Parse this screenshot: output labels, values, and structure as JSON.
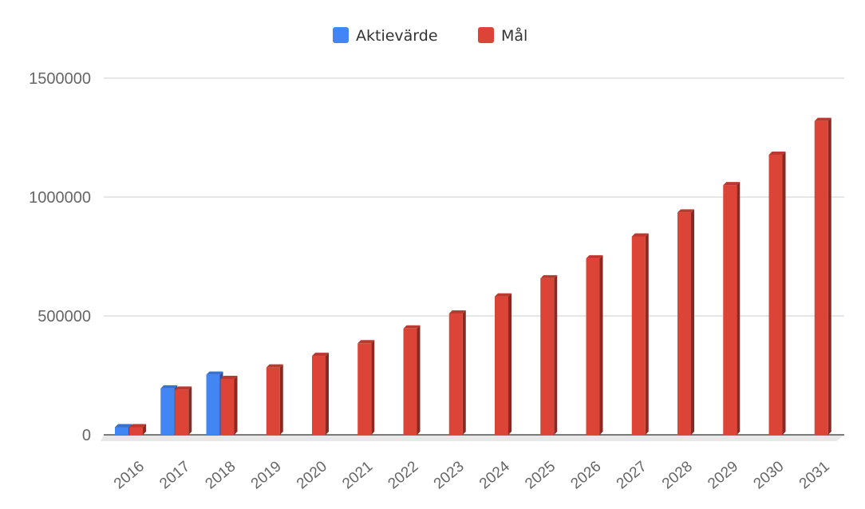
{
  "chart_data": {
    "type": "bar",
    "style": "3d",
    "categories": [
      "2016",
      "2017",
      "2018",
      "2019",
      "2020",
      "2021",
      "2022",
      "2023",
      "2024",
      "2025",
      "2026",
      "2027",
      "2028",
      "2029",
      "2030",
      "2031"
    ],
    "series": [
      {
        "name": "Aktievärde",
        "color": "#4285f4",
        "values": [
          32000,
          195000,
          253000,
          null,
          null,
          null,
          null,
          null,
          null,
          null,
          null,
          null,
          null,
          null,
          null,
          null
        ]
      },
      {
        "name": "Mål",
        "color": "#db4437",
        "values": [
          32000,
          190000,
          235000,
          283000,
          332000,
          385000,
          447000,
          510000,
          582000,
          658000,
          742000,
          834000,
          935000,
          1050000,
          1178000,
          1320000
        ]
      }
    ],
    "y_ticks": [
      "0",
      "500000",
      "1000000",
      "1500000"
    ],
    "ylim": [
      0,
      1500000
    ],
    "grid": true,
    "legend": "top-center",
    "xlabel": "",
    "ylabel": ""
  }
}
